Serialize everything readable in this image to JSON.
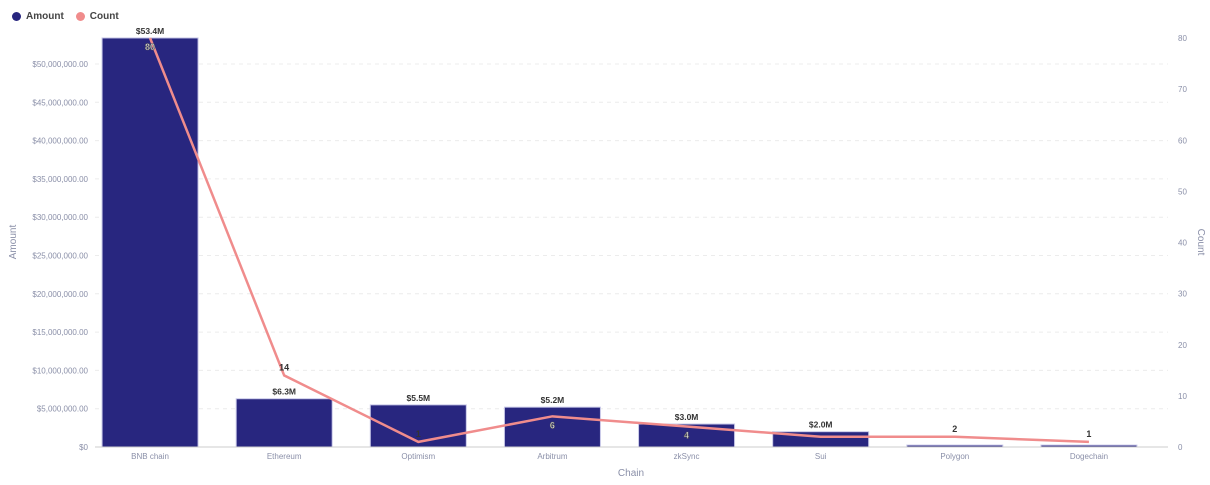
{
  "chart_data": {
    "type": "bar",
    "categories": [
      "BNB chain",
      "Ethereum",
      "Optimism",
      "Arbitrum",
      "zkSync",
      "Sui",
      "Polygon",
      "Dogechain"
    ],
    "series": [
      {
        "name": "Amount",
        "type": "bar",
        "axis": "left",
        "color": "#28267f",
        "values": [
          53400000,
          6300000,
          5500000,
          5200000,
          3000000,
          2000000,
          250000,
          250000
        ],
        "labels": [
          "$53.4M",
          "$6.3M",
          "$5.5M",
          "$5.2M",
          "$3.0M",
          "$2.0M",
          "",
          ""
        ]
      },
      {
        "name": "Count",
        "type": "line",
        "axis": "right",
        "color": "#f08c8c",
        "values": [
          80,
          14,
          1,
          6,
          4,
          2,
          2,
          1
        ],
        "labels": [
          "80",
          "14",
          "1",
          "6",
          "4",
          "",
          "2",
          "1"
        ]
      }
    ],
    "xlabel": "Chain",
    "ylabel": "Amount",
    "y2label": "Count",
    "ylim": [
      0,
      53400000
    ],
    "yticks": [
      "$0",
      "$5,000,000.00",
      "$10,000,000.00",
      "$15,000,000.00",
      "$20,000,000.00",
      "$25,000,000.00",
      "$30,000,000.00",
      "$35,000,000.00",
      "$40,000,000.00",
      "$45,000,000.00",
      "$50,000,000.00"
    ],
    "ytick_values": [
      0,
      5000000,
      10000000,
      15000000,
      20000000,
      25000000,
      30000000,
      35000000,
      40000000,
      45000000,
      50000000
    ],
    "y2ticks": [
      "0",
      "10",
      "20",
      "30",
      "40",
      "50",
      "60",
      "70",
      "80"
    ],
    "y2tick_values": [
      0,
      10,
      20,
      30,
      40,
      50,
      60,
      70,
      80
    ],
    "y2lim": [
      0,
      80
    ],
    "legend": "top-left",
    "grid": true
  }
}
